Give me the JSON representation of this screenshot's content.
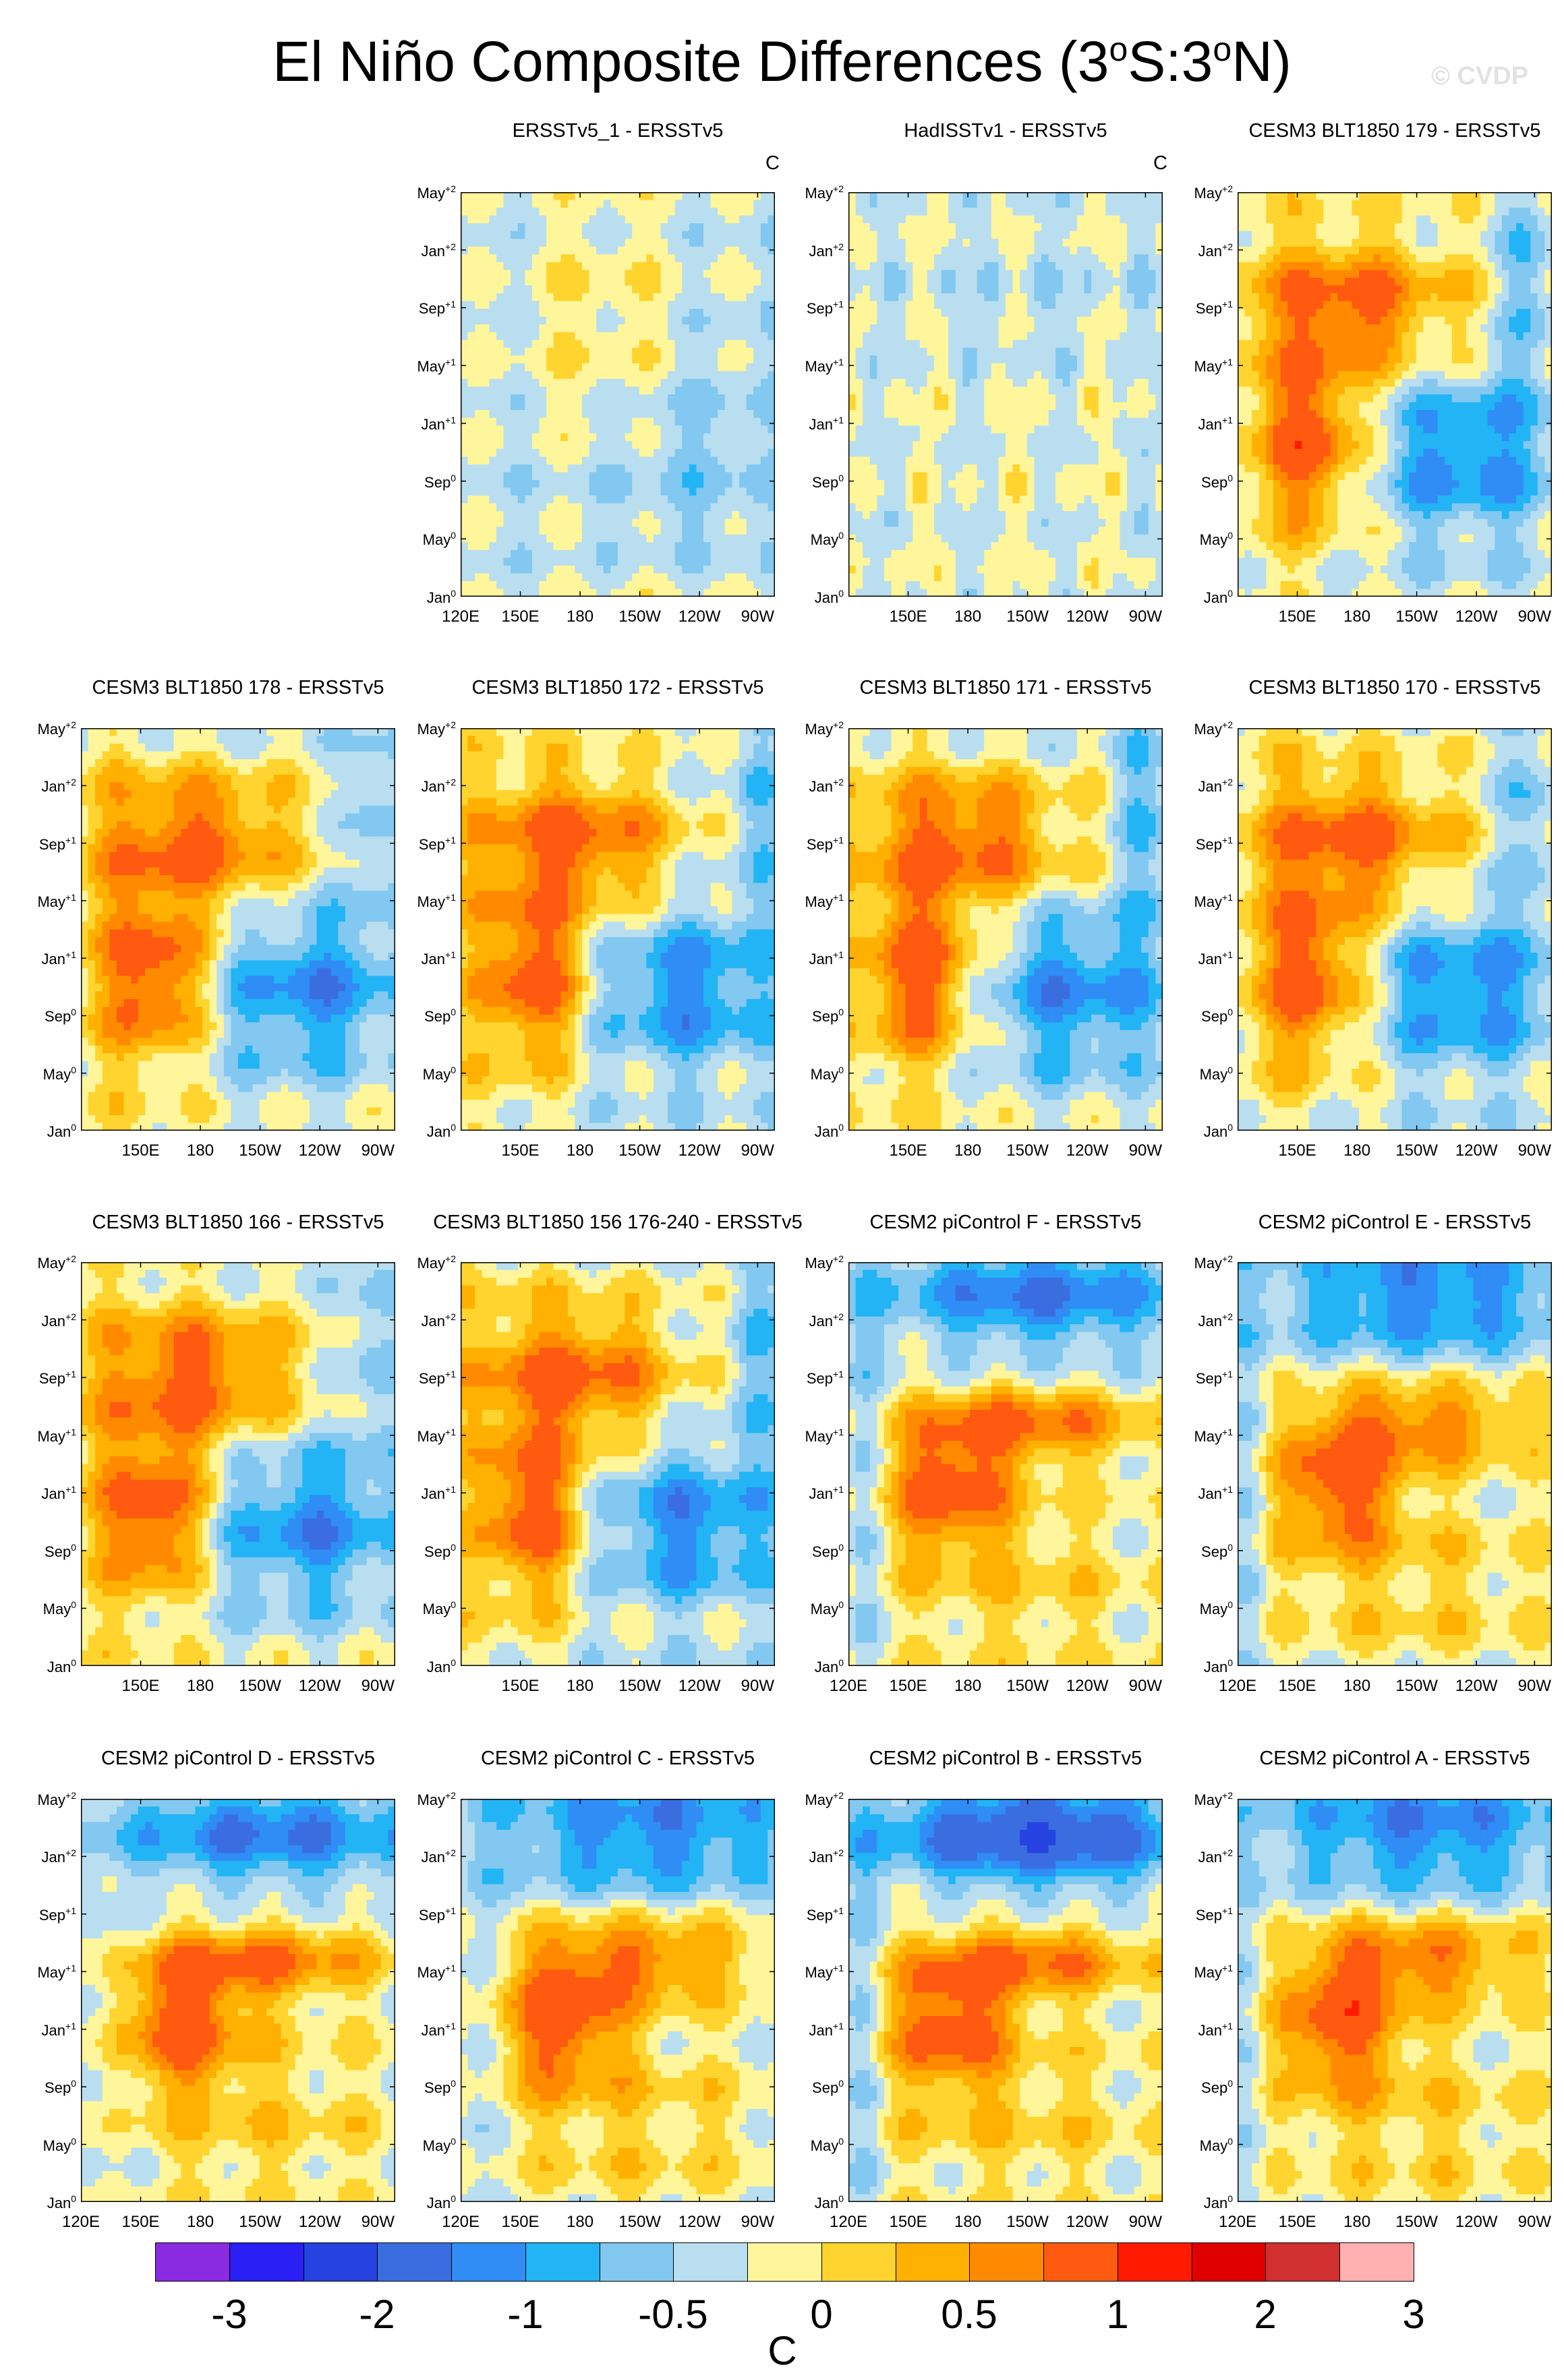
{
  "title": {
    "main": "El Niño Composite Differences (3",
    "sup1": "o",
    "mid": "S:3",
    "sup2": "o",
    "end": "N)"
  },
  "copyright": "© CVDP",
  "units": "C",
  "y_axis_ticks": [
    {
      "month": "May",
      "sup": "+2"
    },
    {
      "month": "Jan",
      "sup": "+2"
    },
    {
      "month": "Sep",
      "sup": "+1"
    },
    {
      "month": "May",
      "sup": "+1"
    },
    {
      "month": "Jan",
      "sup": "+1"
    },
    {
      "month": "Sep",
      "sup": "0"
    },
    {
      "month": "May",
      "sup": "0"
    },
    {
      "month": "Jan",
      "sup": "0"
    }
  ],
  "colorbar": {
    "colors": [
      "#8a2be2",
      "#2a1ff5",
      "#2642e0",
      "#3a6ee0",
      "#2f8df5",
      "#22b4f5",
      "#82c8f0",
      "#b9def0",
      "#fff59a",
      "#ffd42e",
      "#ffb000",
      "#ff8a00",
      "#ff5a10",
      "#ff1a00",
      "#e00000",
      "#d03030",
      "#ffb0b0"
    ],
    "labels": [
      "-3",
      "-2",
      "-1",
      "-0.5",
      "0",
      "0.5",
      "1",
      "2",
      "3"
    ]
  },
  "chart_data": [
    {
      "type": "heatmap",
      "title": "ERSSTv5_1 - ERSSTv5",
      "units": "C",
      "xlabels": [
        "120E",
        "150E",
        "180",
        "150W",
        "120W",
        "90W"
      ],
      "regime": "obs1"
    },
    {
      "type": "heatmap",
      "title": "HadISSTv1 - ERSSTv5",
      "units": "C",
      "xlabels": [
        "150E",
        "180",
        "150W",
        "120W",
        "90W"
      ],
      "regime": "obs2"
    },
    {
      "type": "heatmap",
      "title": "CESM3 BLT1850 179 - ERSSTv5",
      "units": "",
      "xlabels": [
        "150E",
        "180",
        "150W",
        "120W",
        "90W"
      ],
      "regime": "blt"
    },
    {
      "type": "heatmap",
      "title": "CESM3 BLT1850 178 - ERSSTv5",
      "units": "",
      "xlabels": [
        "150E",
        "180",
        "150W",
        "120W",
        "90W"
      ],
      "regime": "blt"
    },
    {
      "type": "heatmap",
      "title": "CESM3 BLT1850 172 - ERSSTv5",
      "units": "",
      "xlabels": [
        "150E",
        "180",
        "150W",
        "120W",
        "90W"
      ],
      "regime": "blt"
    },
    {
      "type": "heatmap",
      "title": "CESM3 BLT1850 171 - ERSSTv5",
      "units": "",
      "xlabels": [
        "150E",
        "180",
        "150W",
        "120W",
        "90W"
      ],
      "regime": "blt"
    },
    {
      "type": "heatmap",
      "title": "CESM3 BLT1850 170 - ERSSTv5",
      "units": "",
      "xlabels": [
        "150E",
        "180",
        "150W",
        "120W",
        "90W"
      ],
      "regime": "blt"
    },
    {
      "type": "heatmap",
      "title": "CESM3 BLT1850 166 - ERSSTv5",
      "units": "",
      "xlabels": [
        "150E",
        "180",
        "150W",
        "120W",
        "90W"
      ],
      "regime": "blt"
    },
    {
      "type": "heatmap",
      "title": "CESM3 BLT1850 156 176-240 - ERSSTv5",
      "units": "",
      "xlabels": [
        "150E",
        "180",
        "150W",
        "120W",
        "90W"
      ],
      "regime": "blt"
    },
    {
      "type": "heatmap",
      "title": "CESM2 piControl F - ERSSTv5",
      "units": "",
      "xlabels": [
        "120E",
        "150E",
        "180",
        "150W",
        "120W",
        "90W"
      ],
      "regime": "cesm2"
    },
    {
      "type": "heatmap",
      "title": "CESM2 piControl E - ERSSTv5",
      "units": "",
      "xlabels": [
        "120E",
        "150E",
        "180",
        "150W",
        "120W",
        "90W"
      ],
      "regime": "cesm2"
    },
    {
      "type": "heatmap",
      "title": "CESM2 piControl D - ERSSTv5",
      "units": "",
      "xlabels": [
        "120E",
        "150E",
        "180",
        "150W",
        "120W",
        "90W"
      ],
      "regime": "cesm2"
    },
    {
      "type": "heatmap",
      "title": "CESM2 piControl C - ERSSTv5",
      "units": "",
      "xlabels": [
        "120E",
        "150E",
        "180",
        "150W",
        "120W",
        "90W"
      ],
      "regime": "cesm2"
    },
    {
      "type": "heatmap",
      "title": "CESM2 piControl B - ERSSTv5",
      "units": "",
      "xlabels": [
        "120E",
        "150E",
        "180",
        "150W",
        "120W",
        "90W"
      ],
      "regime": "cesm2b"
    },
    {
      "type": "heatmap",
      "title": "CESM2 piControl A - ERSSTv5",
      "units": "",
      "xlabels": [
        "120E",
        "150E",
        "180",
        "150W",
        "120W",
        "90W"
      ],
      "regime": "cesm2"
    }
  ]
}
